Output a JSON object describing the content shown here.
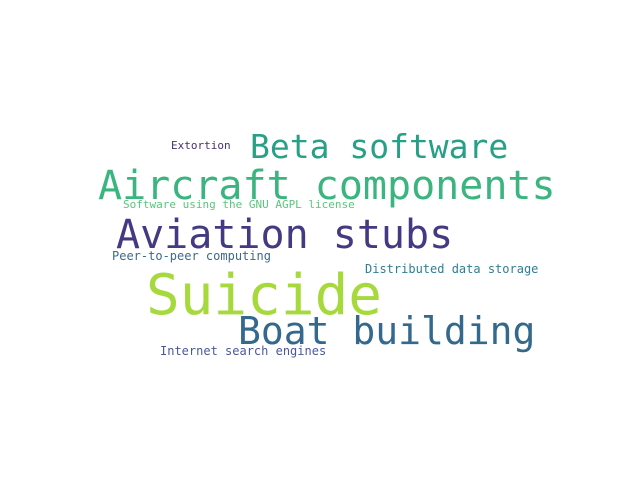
{
  "words": {
    "extortion": {
      "text": "Extortion",
      "color": "#44336f"
    },
    "beta": {
      "text": "Beta software",
      "color": "#27a085"
    },
    "aircraft": {
      "text": "Aircraft components",
      "color": "#3bb57f"
    },
    "agpl": {
      "text": "Software using the GNU AGPL license",
      "color": "#5ac57a"
    },
    "aviation": {
      "text": "Aviation stubs",
      "color": "#443a83"
    },
    "p2p": {
      "text": "Peer-to-peer computing",
      "color": "#3a6a8c"
    },
    "distributed": {
      "text": "Distributed data storage",
      "color": "#2f7e8e"
    },
    "suicide": {
      "text": "Suicide",
      "color": "#a6d93b"
    },
    "boat": {
      "text": "Boat building",
      "color": "#33698d"
    },
    "search": {
      "text": "Internet search engines",
      "color": "#4b5898"
    }
  }
}
